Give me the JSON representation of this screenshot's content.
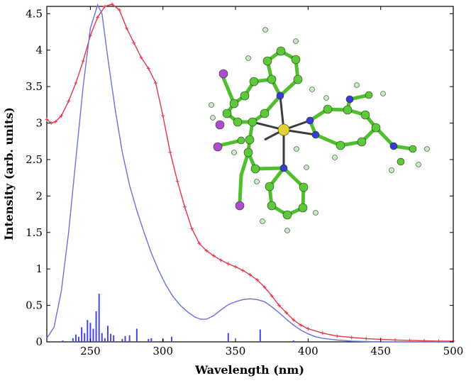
{
  "chart_data": {
    "type": "line",
    "title": "",
    "xlabel": "Wavelength (nm)",
    "ylabel": "Intensity (arb. units)",
    "xlim": [
      220,
      500
    ],
    "ylim": [
      0,
      4.6
    ],
    "grid": false,
    "legend": "none",
    "x_ticks": [
      {
        "value": 250,
        "label": "250"
      },
      {
        "value": 300,
        "label": "300"
      },
      {
        "value": 350,
        "label": "350"
      },
      {
        "value": 400,
        "label": "400"
      },
      {
        "value": 450,
        "label": "450"
      },
      {
        "value": 500,
        "label": "500"
      }
    ],
    "y_ticks": [
      {
        "value": 0,
        "label": "0"
      },
      {
        "value": 0.5,
        "label": "0.5"
      },
      {
        "value": 1,
        "label": "1"
      },
      {
        "value": 1.5,
        "label": "1.5"
      },
      {
        "value": 2,
        "label": "2"
      },
      {
        "value": 2.5,
        "label": "2.5"
      },
      {
        "value": 3,
        "label": "3"
      },
      {
        "value": 3.5,
        "label": "3.5"
      },
      {
        "value": 4,
        "label": "4"
      },
      {
        "value": 4.5,
        "label": "4.5"
      }
    ],
    "series": [
      {
        "color": "#e8334a",
        "marker": "plus",
        "points": [
          [
            220,
            3.05
          ],
          [
            223,
            3.0
          ],
          [
            226,
            3.02
          ],
          [
            230,
            3.1
          ],
          [
            235,
            3.3
          ],
          [
            240,
            3.55
          ],
          [
            245,
            3.85
          ],
          [
            250,
            4.2
          ],
          [
            255,
            4.45
          ],
          [
            260,
            4.6
          ],
          [
            265,
            4.63
          ],
          [
            270,
            4.55
          ],
          [
            275,
            4.3
          ],
          [
            280,
            4.1
          ],
          [
            285,
            3.9
          ],
          [
            290,
            3.75
          ],
          [
            295,
            3.55
          ],
          [
            300,
            3.1
          ],
          [
            305,
            2.6
          ],
          [
            310,
            2.2
          ],
          [
            315,
            1.85
          ],
          [
            320,
            1.55
          ],
          [
            325,
            1.35
          ],
          [
            330,
            1.25
          ],
          [
            335,
            1.18
          ],
          [
            340,
            1.12
          ],
          [
            345,
            1.07
          ],
          [
            350,
            1.03
          ],
          [
            355,
            0.98
          ],
          [
            360,
            0.92
          ],
          [
            365,
            0.85
          ],
          [
            370,
            0.75
          ],
          [
            375,
            0.63
          ],
          [
            380,
            0.5
          ],
          [
            385,
            0.4
          ],
          [
            390,
            0.3
          ],
          [
            395,
            0.23
          ],
          [
            400,
            0.18
          ],
          [
            410,
            0.12
          ],
          [
            420,
            0.08
          ],
          [
            430,
            0.06
          ],
          [
            440,
            0.045
          ],
          [
            450,
            0.035
          ],
          [
            460,
            0.025
          ],
          [
            470,
            0.02
          ],
          [
            480,
            0.015
          ],
          [
            490,
            0.01
          ],
          [
            500,
            0.01
          ]
        ]
      },
      {
        "color": "#6b6fe0",
        "marker": "none",
        "points": [
          [
            220,
            0.05
          ],
          [
            225,
            0.2
          ],
          [
            230,
            0.7
          ],
          [
            235,
            1.5
          ],
          [
            240,
            2.5
          ],
          [
            245,
            3.5
          ],
          [
            250,
            4.3
          ],
          [
            255,
            4.62
          ],
          [
            258,
            4.5
          ],
          [
            262,
            3.9
          ],
          [
            267,
            3.2
          ],
          [
            272,
            2.6
          ],
          [
            277,
            2.15
          ],
          [
            282,
            1.8
          ],
          [
            287,
            1.5
          ],
          [
            292,
            1.22
          ],
          [
            297,
            0.98
          ],
          [
            302,
            0.78
          ],
          [
            307,
            0.62
          ],
          [
            312,
            0.5
          ],
          [
            317,
            0.41
          ],
          [
            322,
            0.34
          ],
          [
            326,
            0.31
          ],
          [
            330,
            0.31
          ],
          [
            335,
            0.36
          ],
          [
            340,
            0.44
          ],
          [
            345,
            0.51
          ],
          [
            350,
            0.55
          ],
          [
            355,
            0.58
          ],
          [
            360,
            0.59
          ],
          [
            365,
            0.58
          ],
          [
            370,
            0.55
          ],
          [
            375,
            0.48
          ],
          [
            380,
            0.4
          ],
          [
            385,
            0.31
          ],
          [
            390,
            0.23
          ],
          [
            395,
            0.16
          ],
          [
            400,
            0.11
          ],
          [
            405,
            0.07
          ],
          [
            410,
            0.05
          ],
          [
            420,
            0.025
          ],
          [
            430,
            0.01
          ],
          [
            440,
            0.005
          ],
          [
            450,
            0.0
          ],
          [
            500,
            0.0
          ]
        ]
      }
    ],
    "sticks": {
      "color": "#4747e8",
      "values": [
        [
          231,
          0.02
        ],
        [
          238,
          0.05
        ],
        [
          240,
          0.1
        ],
        [
          242,
          0.07
        ],
        [
          244,
          0.2
        ],
        [
          246,
          0.12
        ],
        [
          248,
          0.3
        ],
        [
          250,
          0.26
        ],
        [
          252,
          0.18
        ],
        [
          254,
          0.42
        ],
        [
          256,
          0.66
        ],
        [
          258,
          0.12
        ],
        [
          260,
          0.05
        ],
        [
          262,
          0.22
        ],
        [
          264,
          0.11
        ],
        [
          266,
          0.09
        ],
        [
          272,
          0.04
        ],
        [
          274,
          0.08
        ],
        [
          277,
          0.09
        ],
        [
          282,
          0.18
        ],
        [
          290,
          0.04
        ],
        [
          292,
          0.05
        ],
        [
          300,
          0.04
        ],
        [
          306,
          0.07
        ],
        [
          345,
          0.12
        ],
        [
          367,
          0.17
        ],
        [
          390,
          0.02
        ]
      ]
    },
    "inset": "molecule"
  }
}
